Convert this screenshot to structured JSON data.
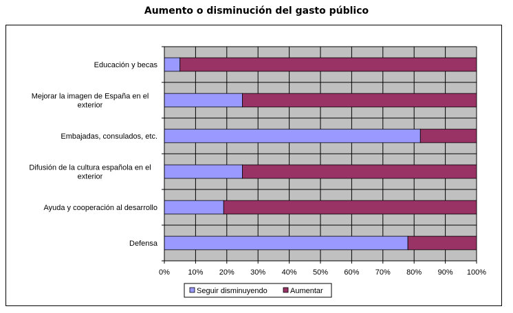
{
  "chart_data": {
    "type": "bar",
    "stacked": true,
    "orientation": "horizontal",
    "title": "Aumento o disminución del gasto público",
    "categories": [
      [
        "Educación y becas"
      ],
      [
        "Mejorar la imagen de España en el",
        "exterior"
      ],
      [
        "Embajadas, consulados, etc."
      ],
      [
        "Difusión de la cultura española en el",
        "exterior"
      ],
      [
        "Ayuda y cooperación al desarrollo"
      ],
      [
        "Defensa"
      ]
    ],
    "series": [
      {
        "name": "Seguir disminuyendo",
        "color": "#9999ff",
        "values": [
          5,
          25,
          82,
          25,
          19,
          78
        ]
      },
      {
        "name": "Aumentar",
        "color": "#993366",
        "values": [
          95,
          75,
          18,
          75,
          81,
          22
        ]
      }
    ],
    "xlim": [
      0,
      100
    ],
    "ticks": [
      "0%",
      "10%",
      "20%",
      "30%",
      "40%",
      "50%",
      "60%",
      "70%",
      "80%",
      "90%",
      "100%"
    ],
    "plot_background": "#c0c0c0",
    "grid": true,
    "legend_position": "bottom"
  }
}
